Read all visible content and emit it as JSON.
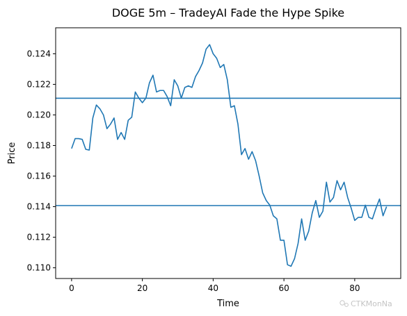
{
  "chart_data": {
    "type": "line",
    "title": "DOGE 5m – TradeyAI Fade the Hype Spike",
    "xlabel": "Time",
    "ylabel": "Price",
    "xlim": [
      -4.5,
      93
    ],
    "ylim": [
      0.1093,
      0.1257
    ],
    "x_ticks": [
      0,
      20,
      40,
      60,
      80
    ],
    "y_ticks": [
      0.11,
      0.112,
      0.114,
      0.116,
      0.118,
      0.12,
      0.122,
      0.124
    ],
    "y_tick_labels": [
      "0.110",
      "0.112",
      "0.114",
      "0.116",
      "0.118",
      "0.120",
      "0.122",
      "0.124"
    ],
    "grid": false,
    "line_color": "#1f77b4",
    "series": [
      {
        "values": [
          0.1178,
          0.11845,
          0.11845,
          0.1184,
          0.11775,
          0.1177,
          0.1198,
          0.12065,
          0.1204,
          0.12,
          0.1191,
          0.1194,
          0.1198,
          0.1184,
          0.11885,
          0.1184,
          0.11965,
          0.11985,
          0.1215,
          0.1211,
          0.1208,
          0.1211,
          0.1221,
          0.1226,
          0.1215,
          0.1216,
          0.1216,
          0.1212,
          0.1206,
          0.1223,
          0.1219,
          0.1211,
          0.1218,
          0.1219,
          0.1218,
          0.1225,
          0.1229,
          0.1234,
          0.1243,
          0.1246,
          0.124,
          0.1237,
          0.1231,
          0.1233,
          0.1223,
          0.1205,
          0.1206,
          0.1194,
          0.1174,
          0.1178,
          0.1171,
          0.1176,
          0.117,
          0.116,
          0.1149,
          0.1144,
          0.1141,
          0.1134,
          0.1132,
          0.1118,
          0.1118,
          0.1102,
          0.1101,
          0.1106,
          0.1116,
          0.1132,
          0.1118,
          0.1124,
          0.1136,
          0.1144,
          0.1133,
          0.1137,
          0.1156,
          0.1143,
          0.1146,
          0.1157,
          0.1151,
          0.1156,
          0.1146,
          0.1139,
          0.1131,
          0.1133,
          0.1133,
          0.1141,
          0.1133,
          0.1132,
          0.1139,
          0.1145,
          0.1134,
          0.114
        ]
      }
    ],
    "horizontal_lines": [
      0.12109,
      0.11407
    ],
    "watermark": "CTKMonNa"
  }
}
